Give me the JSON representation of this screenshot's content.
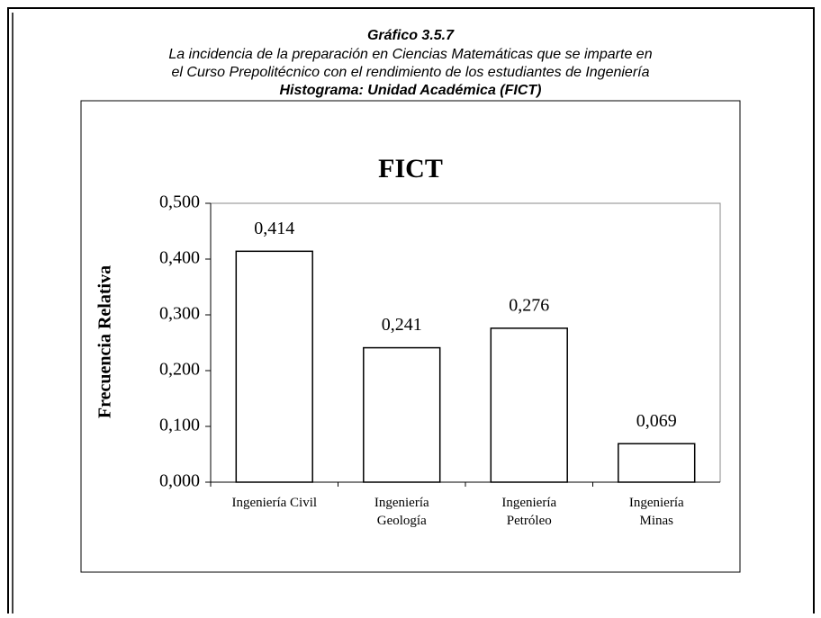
{
  "header": {
    "title": "Gráfico 3.5.7",
    "lines": [
      "La  incidencia de la preparación en Ciencias Matemáticas que se imparte en",
      "el Curso Prepolitécnico con el rendimiento de los estudiantes de Ingeniería"
    ],
    "subtitle": "Histograma: Unidad Académica (FICT)"
  },
  "chart_data": {
    "type": "bar",
    "title": "FICT",
    "y_label": "Frecuencia Relativa",
    "categories": [
      "Ingeniería Civil",
      "Ingeniería\nGeología",
      "Ingeniería\nPetróleo",
      "Ingeniería\nMinas"
    ],
    "values": [
      0.414,
      0.241,
      0.276,
      0.069
    ],
    "value_labels": [
      "0,414",
      "0,241",
      "0,276",
      "0,069"
    ],
    "color": "#ffffff",
    "ylim": [
      0,
      0.5
    ],
    "yticks": [
      {
        "value": 0,
        "label": "0,000"
      },
      {
        "value": 0.1,
        "label": "0,100"
      },
      {
        "value": 0.2,
        "label": "0,200"
      },
      {
        "value": 0.3,
        "label": "0,300"
      },
      {
        "value": 0.4,
        "label": "0,400"
      },
      {
        "value": 0.5,
        "label": "0,500"
      }
    ],
    "grid": false
  }
}
